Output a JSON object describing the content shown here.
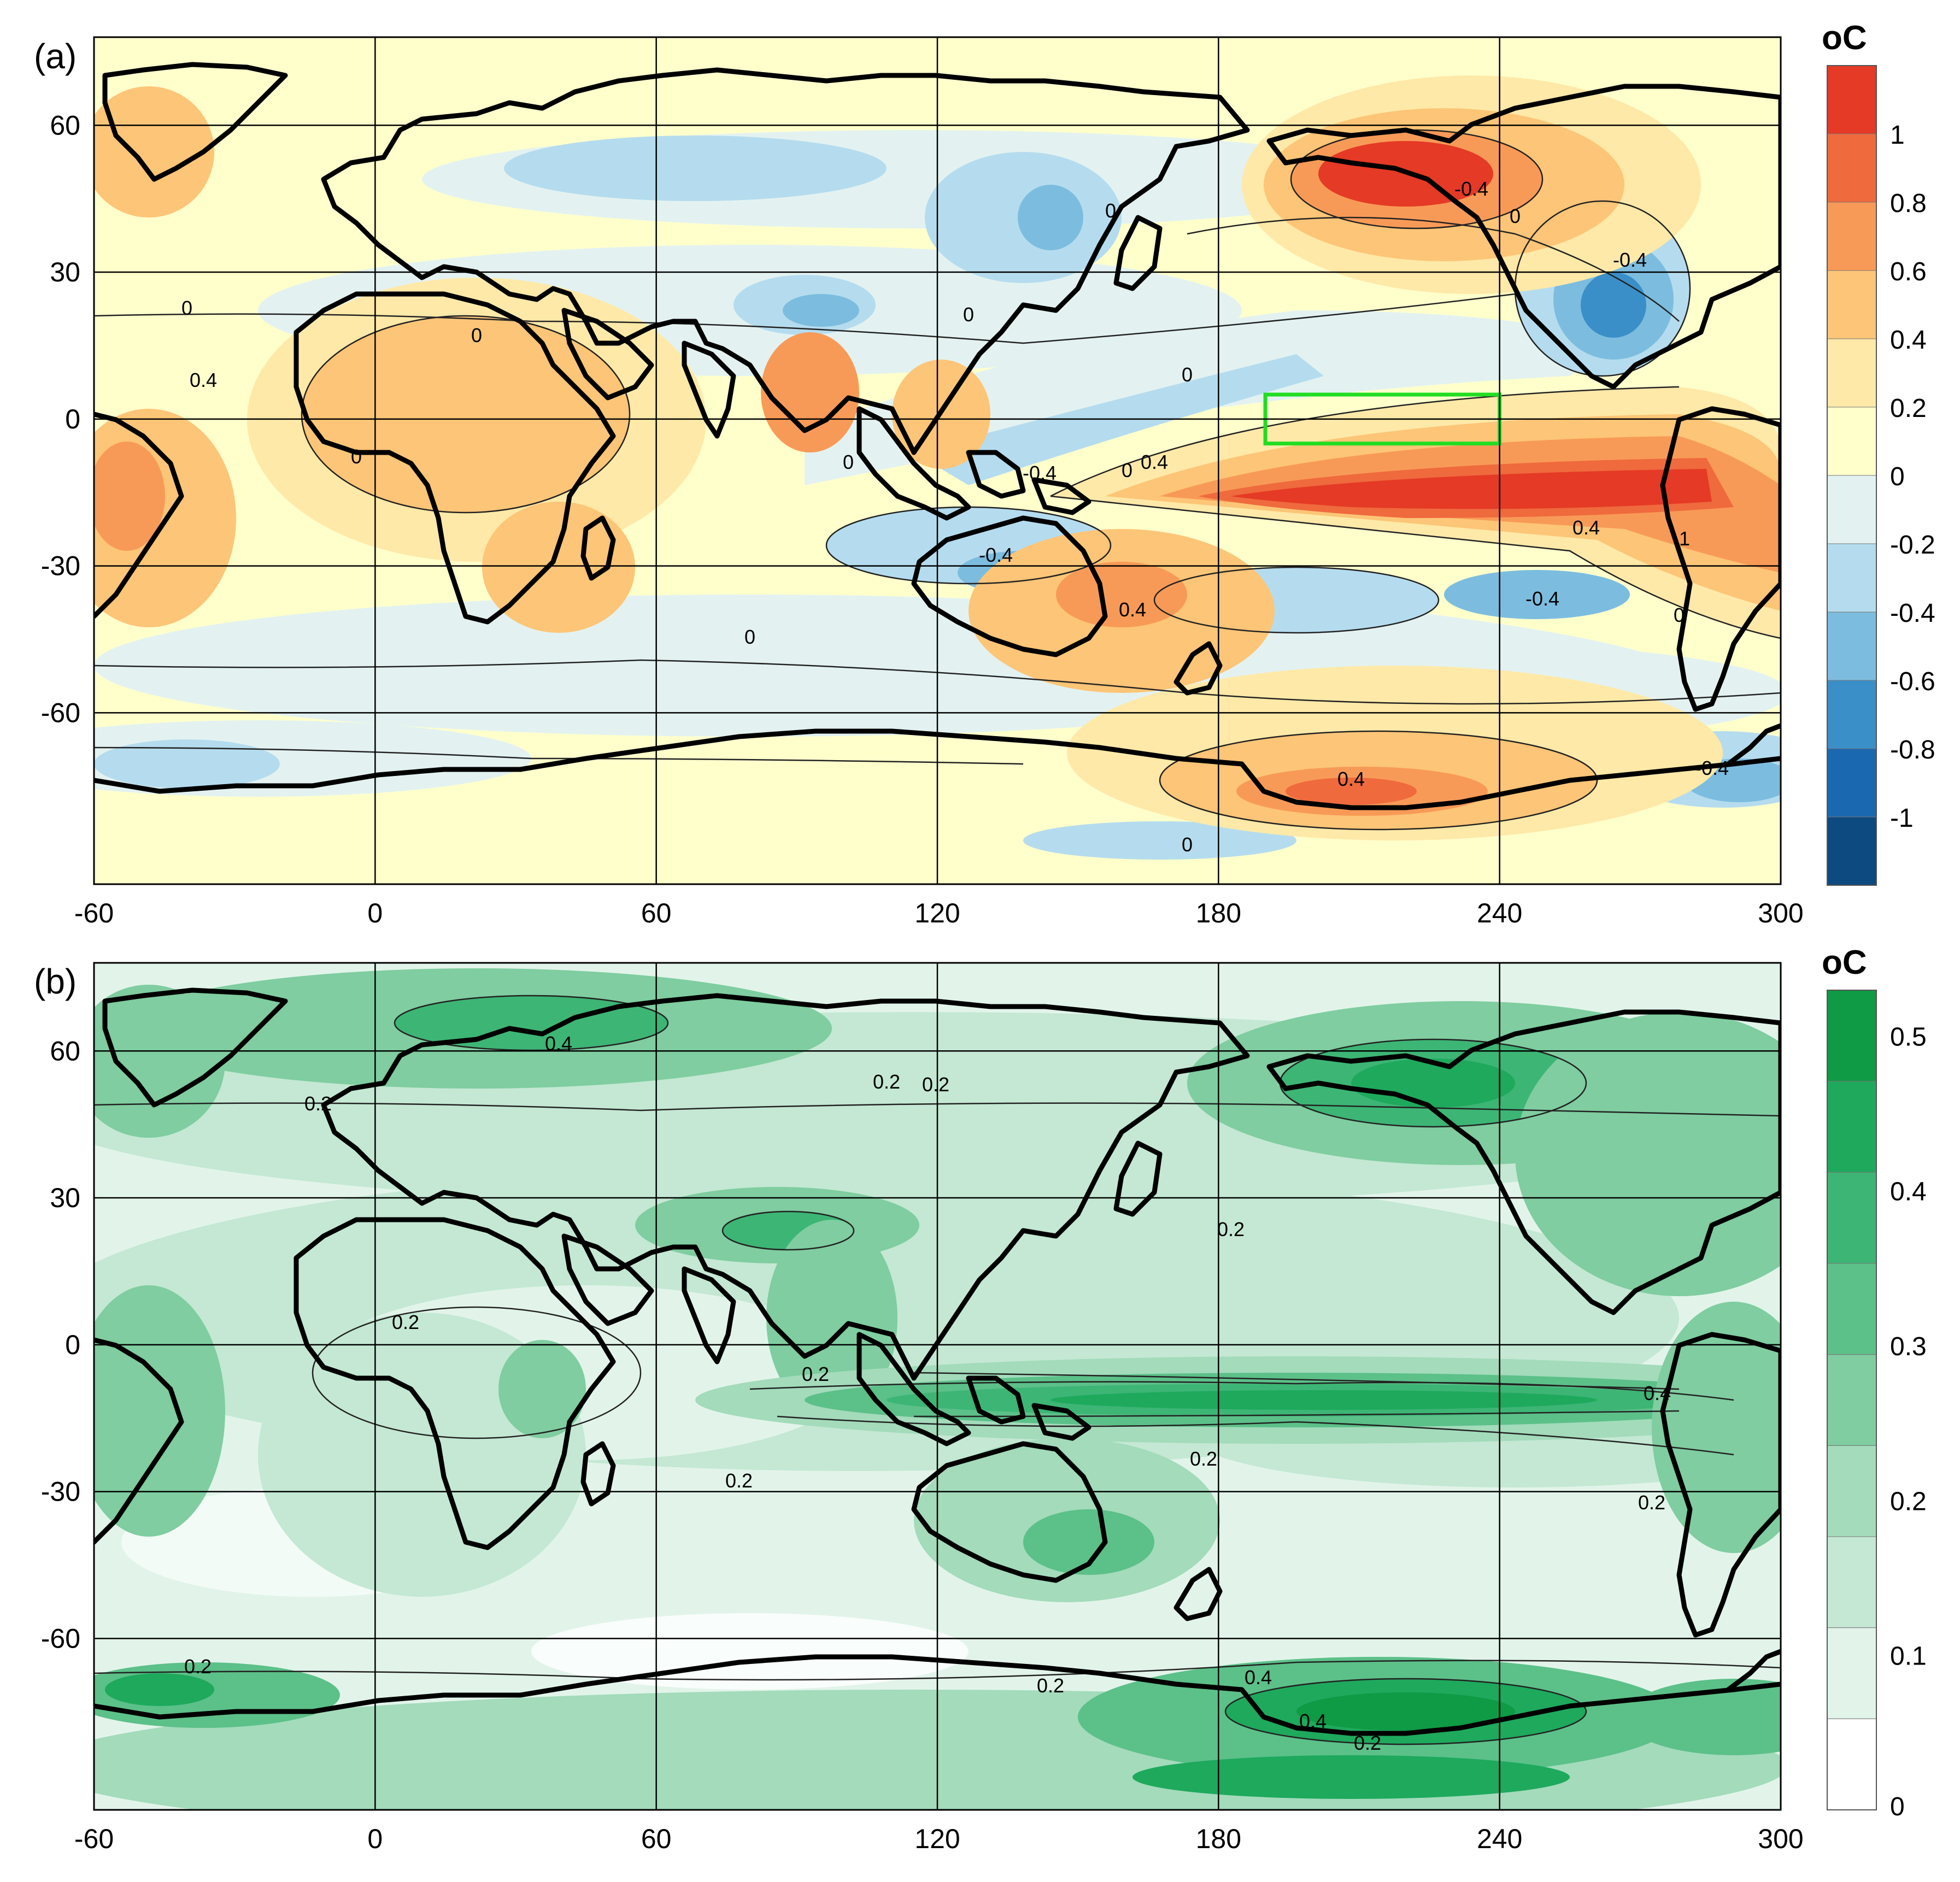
{
  "figure": {
    "panels": [
      {
        "id": "a",
        "label": "(a)",
        "unit": "oC",
        "colorbar": {
          "colors": [
            "#0d4a80",
            "#1a68b0",
            "#3b8fc8",
            "#7cbddf",
            "#b5dcee",
            "#e3f2f1",
            "#ffffcc",
            "#ffe9a8",
            "#fdc577",
            "#f89a57",
            "#ef6a3d",
            "#e53a25"
          ],
          "tick_labels": [
            "-1",
            "-0.8",
            "-0.6",
            "-0.4",
            "-0.2",
            "0",
            "0.2",
            "0.4",
            "0.6",
            "0.8",
            "1"
          ]
        },
        "contour_labels": [
          "0",
          "0",
          "0",
          "0",
          "0",
          "0",
          "0",
          "0",
          "0",
          "0",
          "0",
          "0",
          "0.4",
          "0.4",
          "0.4",
          "0.4",
          "-0.4",
          "-0.4",
          "-0.4",
          "-0.4",
          "-0.4",
          "-0.4",
          "1",
          "0.4"
        ],
        "highlight_box": {
          "lon": [
            190,
            240
          ],
          "lat": [
            -5,
            5
          ],
          "color": "#22dd22"
        }
      },
      {
        "id": "b",
        "label": "(b)",
        "unit": "oC",
        "colorbar": {
          "colors": [
            "#ffffff",
            "#e2f4ea",
            "#c4e8d3",
            "#a3dbbb",
            "#7fcda0",
            "#5cc089",
            "#3db575",
            "#1ea95d",
            "#0f9a45"
          ],
          "tick_labels": [
            "0",
            "0.1",
            "0.2",
            "0.3",
            "0.4",
            "0.5"
          ]
        },
        "contour_labels": [
          "0.2",
          "0.4",
          "0.2",
          "0.2",
          "0.2",
          "0.2",
          "0.2",
          "0.2",
          "0.2",
          "0.4",
          "0.4",
          "0.2",
          "0.2",
          "0.2",
          "0.2",
          "0.4"
        ]
      }
    ],
    "x_ticks": [
      "-60",
      "0",
      "60",
      "120",
      "180",
      "240",
      "300"
    ],
    "y_ticks": [
      "60",
      "30",
      "0",
      "-30",
      "-60"
    ]
  }
}
